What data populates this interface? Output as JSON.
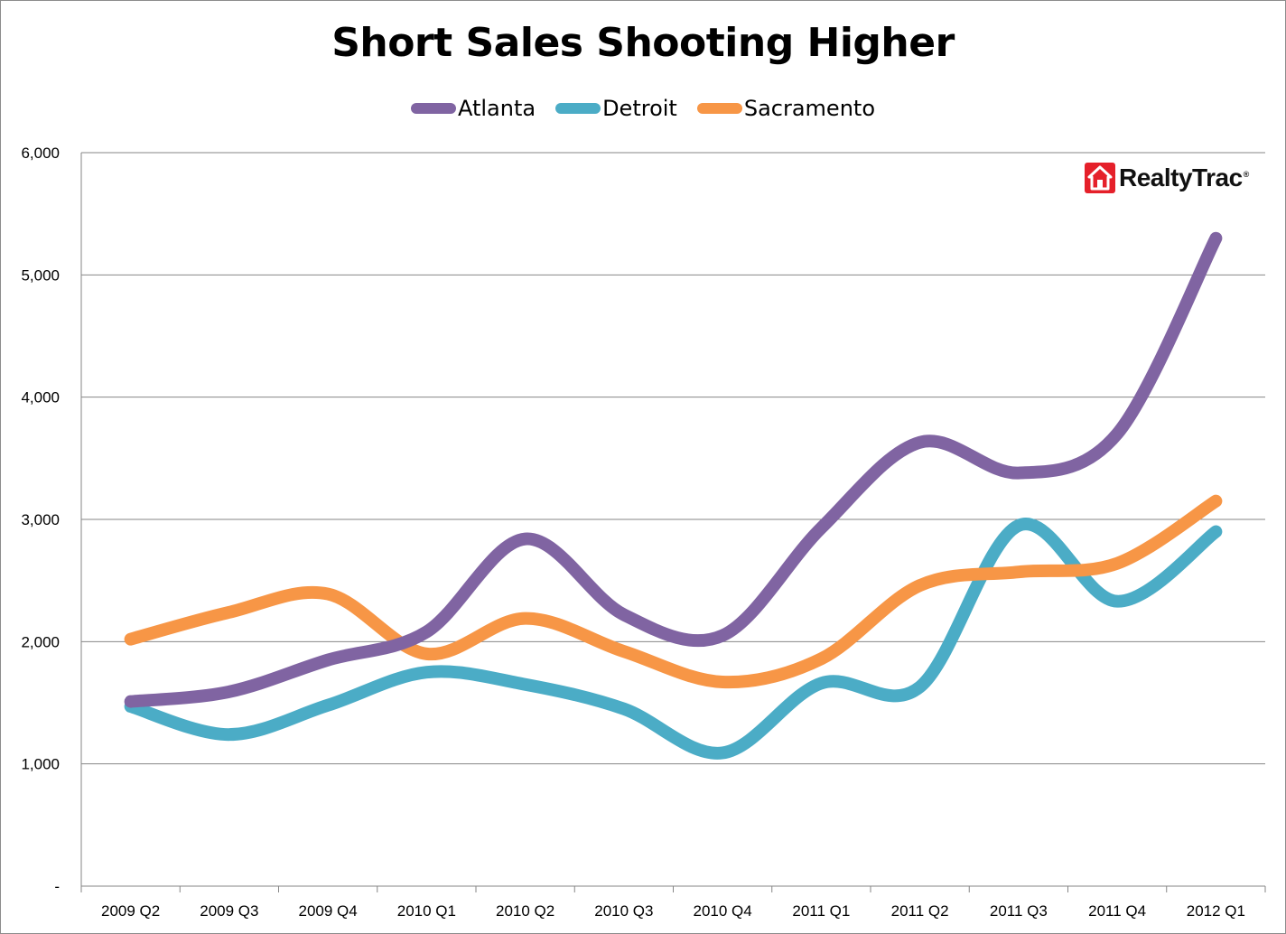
{
  "chart_data": {
    "type": "line",
    "title": "Short Sales Shooting Higher",
    "xlabel": "",
    "ylabel": "",
    "ylim": [
      0,
      6000
    ],
    "yticks": [
      {
        "value": 0,
        "label": "-"
      },
      {
        "value": 1000,
        "label": "1,000"
      },
      {
        "value": 2000,
        "label": "2,000"
      },
      {
        "value": 3000,
        "label": "3,000"
      },
      {
        "value": 4000,
        "label": "4,000"
      },
      {
        "value": 5000,
        "label": "5,000"
      },
      {
        "value": 6000,
        "label": "6,000"
      }
    ],
    "categories": [
      "2009 Q2",
      "2009 Q3",
      "2009 Q4",
      "2010 Q1",
      "2010 Q2",
      "2010 Q3",
      "2010 Q4",
      "2011 Q1",
      "2011 Q2",
      "2011 Q3",
      "2011 Q4",
      "2012 Q1"
    ],
    "grid": true,
    "legend_position": "top",
    "series": [
      {
        "name": "Atlanta",
        "color": "#8064a2",
        "values": [
          1510,
          1590,
          1850,
          2080,
          2840,
          2220,
          2050,
          2930,
          3630,
          3380,
          3700,
          5300
        ]
      },
      {
        "name": "Detroit",
        "color": "#4bacc6",
        "values": [
          1470,
          1240,
          1480,
          1750,
          1650,
          1450,
          1090,
          1660,
          1630,
          2950,
          2330,
          2900
        ]
      },
      {
        "name": "Sacramento",
        "color": "#f79646",
        "values": [
          2020,
          2240,
          2390,
          1900,
          2190,
          1920,
          1670,
          1860,
          2460,
          2570,
          2640,
          3150
        ]
      }
    ]
  },
  "logo": {
    "text": "RealtyTrac",
    "reg": "®",
    "icon": "house-icon"
  }
}
